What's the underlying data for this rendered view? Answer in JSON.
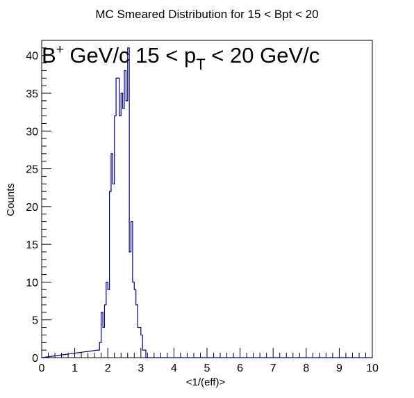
{
  "chart_data": {
    "type": "histogram",
    "title": "MC Smeared Distribution for 15 < Bpt < 20",
    "annotation": {
      "particle": "B",
      "charge": "+",
      "text1": " GeV/c 15 < p",
      "subscript": "T",
      "text2": " < 20 GeV/c"
    },
    "xlabel": "<1/(eff)>",
    "ylabel": "Counts",
    "xlim": [
      0,
      10
    ],
    "ylim": [
      0,
      42
    ],
    "xticks": [
      "0",
      "1",
      "2",
      "3",
      "4",
      "5",
      "6",
      "7",
      "8",
      "9",
      "10"
    ],
    "yticks": [
      "0",
      "5",
      "10",
      "15",
      "20",
      "25",
      "30",
      "35",
      "40"
    ],
    "yticks_values": [
      0,
      5,
      10,
      15,
      20,
      25,
      30,
      35,
      40
    ],
    "line_color": "#000080",
    "bin_width": 0.05,
    "bins": [
      [
        1.7,
        1
      ],
      [
        1.75,
        2
      ],
      [
        1.8,
        6
      ],
      [
        1.85,
        4
      ],
      [
        1.9,
        7
      ],
      [
        1.95,
        10
      ],
      [
        2.0,
        9
      ],
      [
        2.05,
        22
      ],
      [
        2.1,
        27
      ],
      [
        2.15,
        23
      ],
      [
        2.2,
        32
      ],
      [
        2.25,
        37
      ],
      [
        2.3,
        37
      ],
      [
        2.35,
        32
      ],
      [
        2.4,
        35
      ],
      [
        2.45,
        33
      ],
      [
        2.5,
        38
      ],
      [
        2.55,
        34
      ],
      [
        2.6,
        41
      ],
      [
        2.65,
        14
      ],
      [
        2.7,
        18
      ],
      [
        2.75,
        10
      ],
      [
        2.8,
        9
      ],
      [
        2.85,
        7
      ],
      [
        2.9,
        4
      ],
      [
        2.95,
        4
      ],
      [
        3.0,
        3
      ],
      [
        3.05,
        1
      ],
      [
        3.1,
        1
      ],
      [
        3.15,
        0
      ]
    ]
  }
}
